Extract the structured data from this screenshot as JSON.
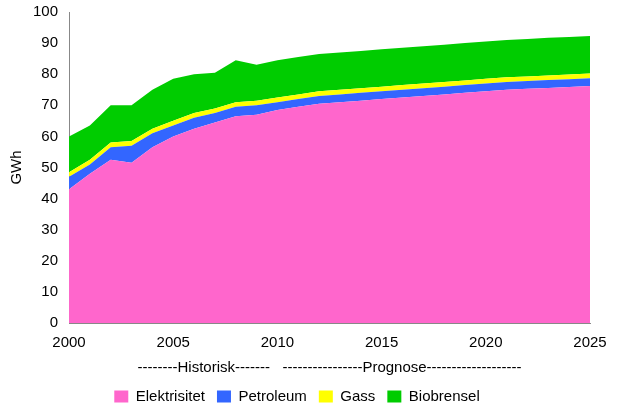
{
  "chart_data": {
    "type": "area",
    "ylabel": "GWh",
    "xlabel": "--------Historisk-------   ----------------Prognose-------------------",
    "x": [
      2000,
      2001,
      2002,
      2003,
      2004,
      2005,
      2006,
      2007,
      2008,
      2009,
      2010,
      2011,
      2012,
      2013,
      2014,
      2015,
      2016,
      2017,
      2018,
      2019,
      2020,
      2021,
      2022,
      2023,
      2024,
      2025
    ],
    "series": [
      {
        "name": "Elektrisitet",
        "color": "#ff66cc",
        "values": [
          43,
          48,
          52.5,
          51.5,
          56.5,
          60,
          62.5,
          64.5,
          66.5,
          67,
          68.5,
          69.5,
          70.5,
          71,
          71.5,
          72,
          72.5,
          73,
          73.5,
          74,
          74.5,
          75,
          75.3,
          75.6,
          75.9,
          76.2
        ]
      },
      {
        "name": "Petroleum",
        "color": "#3366ff",
        "values": [
          4,
          3,
          4,
          5.5,
          4.5,
          3.5,
          3.5,
          3,
          3,
          3,
          2.5,
          2.5,
          2.5,
          2.5,
          2.5,
          2.5,
          2.5,
          2.5,
          2.5,
          2.5,
          2.5,
          2.5,
          2.5,
          2.5,
          2.5,
          2.5
        ]
      },
      {
        "name": "Gass",
        "color": "#ffff00",
        "values": [
          1.5,
          1.5,
          1.5,
          1.5,
          1.5,
          1.5,
          1.5,
          1.5,
          1.5,
          1.5,
          1.5,
          1.5,
          1.5,
          1.5,
          1.5,
          1.5,
          1.5,
          1.5,
          1.5,
          1.5,
          1.5,
          1.5,
          1.5,
          1.5,
          1.5,
          1.5
        ]
      },
      {
        "name": "Biobrensel",
        "color": "#00cc00",
        "values": [
          11.5,
          11,
          12,
          11.5,
          12.5,
          13.5,
          12.5,
          11.5,
          13.5,
          11.5,
          12,
          12,
          12,
          12,
          12,
          12,
          12,
          12,
          12,
          12,
          12,
          12,
          12,
          12.1,
          12.1,
          12.1
        ]
      }
    ],
    "xlim": [
      2000,
      2025
    ],
    "xticks": [
      2000,
      2005,
      2010,
      2015,
      2020,
      2025
    ],
    "ylim": [
      0,
      100
    ],
    "yticks": [
      0,
      10,
      20,
      30,
      40,
      50,
      60,
      70,
      80,
      90,
      100
    ],
    "stacked": true,
    "grid": false,
    "legend": "bottom"
  }
}
